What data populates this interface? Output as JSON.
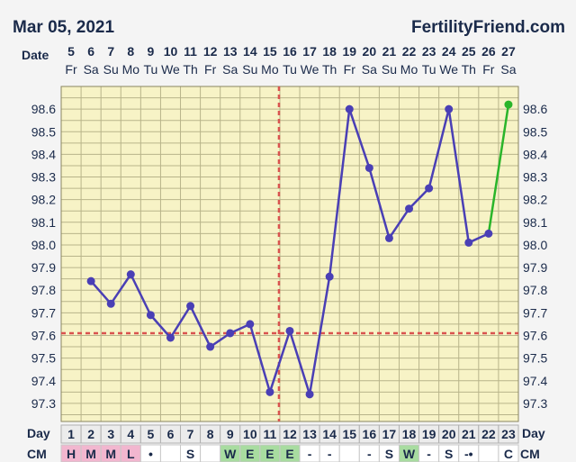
{
  "header": {
    "date": "Mar 05, 2021",
    "brand": "FertilityFriend.com"
  },
  "chart_data": {
    "type": "line",
    "date_row_label": "Date",
    "day_row_label": "Day",
    "cm_row_label": "CM",
    "dates": [
      "5",
      "6",
      "7",
      "8",
      "9",
      "10",
      "11",
      "12",
      "13",
      "14",
      "15",
      "16",
      "17",
      "18",
      "19",
      "20",
      "21",
      "22",
      "23",
      "24",
      "25",
      "26",
      "27"
    ],
    "weekdays": [
      "Fr",
      "Sa",
      "Su",
      "Mo",
      "Tu",
      "We",
      "Th",
      "Fr",
      "Sa",
      "Su",
      "Mo",
      "Tu",
      "We",
      "Th",
      "Fr",
      "Sa",
      "Su",
      "Mo",
      "Tu",
      "We",
      "Th",
      "Fr",
      "Sa"
    ],
    "cycle_days": [
      "1",
      "2",
      "3",
      "4",
      "5",
      "6",
      "7",
      "8",
      "9",
      "10",
      "11",
      "12",
      "13",
      "14",
      "15",
      "16",
      "17",
      "18",
      "19",
      "20",
      "21",
      "22",
      "23"
    ],
    "cm": [
      "H",
      "M",
      "M",
      "L",
      "•",
      "",
      "S",
      "",
      "W",
      "E",
      "E",
      "E",
      "-",
      "-",
      "",
      "-",
      "S",
      "W",
      "-",
      "S",
      "-•",
      "",
      "C"
    ],
    "cm_colors": [
      "#f2b6cf",
      "#f2b6cf",
      "#f2b6cf",
      "#f2b6cf",
      "",
      "",
      "",
      "",
      "#a8dca0",
      "#a8dca0",
      "#a8dca0",
      "#a8dca0",
      "",
      "",
      "",
      "",
      "",
      "#a8dca0",
      "",
      "",
      "",
      "",
      ""
    ],
    "y_ticks": [
      "97.3",
      "97.4",
      "97.5",
      "97.6",
      "97.7",
      "97.8",
      "97.9",
      "98.0",
      "98.1",
      "98.2",
      "98.3",
      "98.4",
      "98.5",
      "98.6"
    ],
    "ylim": [
      97.22,
      98.7
    ],
    "temps": [
      null,
      97.84,
      97.74,
      97.87,
      97.69,
      97.59,
      97.73,
      97.55,
      97.61,
      97.65,
      97.35,
      97.62,
      97.34,
      97.86,
      98.6,
      98.34,
      98.03,
      98.16,
      98.25,
      98.6,
      98.01,
      98.05,
      98.62
    ],
    "series_color": "#4a3fb5",
    "last_segment_color": "#2ab52a",
    "coverline": 97.61,
    "ovulation_day": 11,
    "reference_line_color": "#d9534f",
    "plot_background": "#f7f3c6",
    "grid": true
  }
}
